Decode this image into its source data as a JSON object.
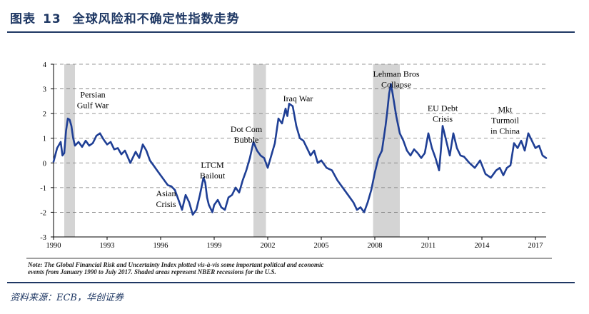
{
  "header": {
    "prefix": "图表",
    "number": "13",
    "title": "全球风险和不确定性指数走势"
  },
  "source": "资料来源：ECB，华创证券",
  "chart_data": {
    "type": "line",
    "xlim": [
      1990,
      2017.6
    ],
    "ylim": [
      -3,
      4
    ],
    "x_ticks": [
      1990,
      1993,
      1996,
      1999,
      2002,
      2005,
      2008,
      2011,
      2014,
      2017
    ],
    "y_ticks": [
      -3,
      -2,
      -1,
      0,
      1,
      2,
      3,
      4
    ],
    "grid": true,
    "line_color": "#1f3f95",
    "shade_color": "#d4d4d4",
    "recessions": [
      [
        1990.6,
        1991.2
      ],
      [
        2001.2,
        2001.9
      ],
      [
        2007.9,
        2009.4
      ]
    ],
    "annotations": [
      {
        "lines": [
          "Persian",
          "Gulf War"
        ],
        "year": 1992.2,
        "value": 2.65
      },
      {
        "lines": [
          "Dot Com",
          "Bubble"
        ],
        "year": 2000.8,
        "value": 1.25
      },
      {
        "lines": [
          "Iraq War"
        ],
        "year": 2003.7,
        "value": 2.5
      },
      {
        "lines": [
          "LTCM",
          "Bailout"
        ],
        "year": 1998.9,
        "value": -0.2
      },
      {
        "lines": [
          "Asian",
          "Crisis"
        ],
        "year": 1996.3,
        "value": -1.35
      },
      {
        "lines": [
          "Lehman Bros",
          "Collapse"
        ],
        "year": 2009.2,
        "value": 3.5
      },
      {
        "lines": [
          "EU Debt",
          "Crisis"
        ],
        "year": 2011.8,
        "value": 2.1
      },
      {
        "lines": [
          "Mkt",
          "Turmoil",
          "in China"
        ],
        "year": 2015.3,
        "value": 2.05
      }
    ],
    "note_lines": [
      "Note: The Global Financial Risk and Uncertainty Index plotted vis-à-vis some important political and economic",
      "events from January 1990 to July 2017. Shaded areas represent NBER recessions for the U.S."
    ],
    "series": [
      {
        "x": [
          1990.0,
          1990.2,
          1990.4,
          1990.5,
          1990.6,
          1990.7,
          1990.8,
          1990.9,
          1991.0,
          1991.1,
          1991.2,
          1991.4,
          1991.6,
          1991.8,
          1992.0,
          1992.2,
          1992.4,
          1992.6,
          1992.8,
          1993.0,
          1993.2,
          1993.4,
          1993.6,
          1993.8,
          1994.0,
          1994.3,
          1994.6,
          1994.8,
          1995.0,
          1995.2,
          1995.4,
          1995.6,
          1995.8,
          1996.0,
          1996.2,
          1996.4,
          1996.6,
          1996.8,
          1997.0,
          1997.2,
          1997.4,
          1997.6,
          1997.8,
          1998.0,
          1998.2,
          1998.4,
          1998.5,
          1998.6,
          1998.7,
          1998.9,
          1999.0,
          1999.2,
          1999.4,
          1999.6,
          1999.8,
          2000.0,
          2000.2,
          2000.4,
          2000.6,
          2000.8,
          2001.0,
          2001.2,
          2001.4,
          2001.6,
          2001.8,
          2002.0,
          2002.2,
          2002.4,
          2002.6,
          2002.8,
          2003.0,
          2003.1,
          2003.2,
          2003.4,
          2003.6,
          2003.8,
          2004.0,
          2004.2,
          2004.4,
          2004.6,
          2004.8,
          2005.0,
          2005.3,
          2005.6,
          2005.9,
          2006.2,
          2006.5,
          2006.8,
          2007.0,
          2007.2,
          2007.4,
          2007.6,
          2007.8,
          2008.0,
          2008.2,
          2008.4,
          2008.6,
          2008.7,
          2008.8,
          2008.9,
          2009.0,
          2009.2,
          2009.4,
          2009.6,
          2009.8,
          2010.0,
          2010.2,
          2010.4,
          2010.6,
          2010.8,
          2011.0,
          2011.2,
          2011.4,
          2011.6,
          2011.7,
          2011.8,
          2012.0,
          2012.2,
          2012.4,
          2012.6,
          2012.8,
          2013.0,
          2013.3,
          2013.6,
          2013.9,
          2014.2,
          2014.5,
          2014.8,
          2015.0,
          2015.2,
          2015.4,
          2015.6,
          2015.8,
          2016.0,
          2016.2,
          2016.4,
          2016.6,
          2016.8,
          2017.0,
          2017.2,
          2017.4,
          2017.6
        ],
        "y": [
          0.05,
          0.6,
          0.85,
          0.3,
          0.4,
          1.3,
          1.8,
          1.75,
          1.5,
          1.0,
          0.7,
          0.85,
          0.65,
          0.9,
          0.7,
          0.8,
          1.1,
          1.2,
          0.95,
          0.75,
          0.85,
          0.55,
          0.6,
          0.35,
          0.5,
          0.0,
          0.45,
          0.2,
          0.75,
          0.5,
          0.1,
          -0.1,
          -0.3,
          -0.5,
          -0.7,
          -0.9,
          -0.95,
          -1.1,
          -1.5,
          -1.9,
          -1.3,
          -1.6,
          -2.1,
          -1.9,
          -1.3,
          -0.6,
          -0.8,
          -1.4,
          -1.7,
          -2.0,
          -1.7,
          -1.5,
          -1.8,
          -1.9,
          -1.4,
          -1.3,
          -1.0,
          -1.2,
          -0.7,
          -0.3,
          0.2,
          0.85,
          0.5,
          0.3,
          0.2,
          -0.2,
          0.3,
          0.8,
          1.8,
          1.6,
          2.2,
          1.9,
          2.4,
          2.3,
          1.5,
          1.0,
          0.9,
          0.6,
          0.3,
          0.5,
          0.0,
          0.1,
          -0.2,
          -0.3,
          -0.7,
          -1.0,
          -1.3,
          -1.6,
          -1.9,
          -1.8,
          -2.0,
          -1.6,
          -1.1,
          -0.4,
          0.2,
          0.5,
          1.5,
          2.1,
          2.8,
          3.2,
          2.8,
          1.9,
          1.2,
          0.9,
          0.5,
          0.3,
          0.55,
          0.4,
          0.2,
          0.4,
          1.2,
          0.6,
          0.2,
          -0.3,
          0.5,
          1.5,
          0.9,
          0.3,
          1.2,
          0.6,
          0.3,
          0.25,
          0.0,
          -0.2,
          0.1,
          -0.45,
          -0.6,
          -0.3,
          -0.2,
          -0.5,
          -0.2,
          -0.1,
          0.8,
          0.6,
          0.9,
          0.5,
          1.2,
          0.9,
          0.6,
          0.7,
          0.3,
          0.2
        ]
      }
    ]
  }
}
